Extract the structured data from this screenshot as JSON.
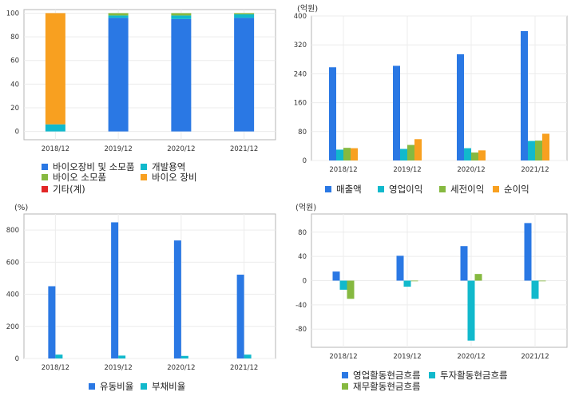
{
  "colors": {
    "blue": "#2a78e4",
    "teal": "#11b9cc",
    "green": "#86b940",
    "orange": "#f8a020",
    "red": "#e22626",
    "grid": "#ececec",
    "frame": "#b5b5b5"
  },
  "chart_data": [
    {
      "type": "bar",
      "stacked": true,
      "unit": "",
      "categories": [
        "2018/12",
        "2019/12",
        "2020/12",
        "2021/12"
      ],
      "ylim": [
        -7,
        103
      ],
      "yticks": [
        0,
        20,
        40,
        60,
        80,
        100
      ],
      "series": [
        {
          "name": "바이오장비 및 소모품",
          "color": "#2a78e4",
          "values": [
            0,
            96,
            95,
            96
          ]
        },
        {
          "name": "개발용역",
          "color": "#11b9cc",
          "values": [
            6,
            2,
            3,
            3
          ]
        },
        {
          "name": "바이오 소모품",
          "color": "#86b940",
          "values": [
            0,
            2,
            2,
            1
          ]
        },
        {
          "name": "바이오 장비",
          "color": "#f8a020",
          "values": [
            94,
            0,
            0,
            0
          ]
        },
        {
          "name": "기타(계)",
          "color": "#e22626",
          "values": [
            0,
            0,
            0,
            0
          ]
        }
      ]
    },
    {
      "type": "bar",
      "unit": "(억원)",
      "categories": [
        "2018/12",
        "2019/12",
        "2020/12",
        "2021/12"
      ],
      "ylim": [
        0,
        400
      ],
      "yticks": [
        0,
        80,
        160,
        240,
        320,
        400
      ],
      "series": [
        {
          "name": "매출액",
          "color": "#2a78e4",
          "values": [
            258,
            262,
            294,
            358
          ]
        },
        {
          "name": "영업이익",
          "color": "#11b9cc",
          "values": [
            30,
            32,
            34,
            54
          ]
        },
        {
          "name": "세전이익",
          "color": "#86b940",
          "values": [
            35,
            43,
            22,
            55
          ]
        },
        {
          "name": "순이익",
          "color": "#f8a020",
          "values": [
            34,
            59,
            28,
            74
          ]
        }
      ]
    },
    {
      "type": "bar",
      "unit": "(%)",
      "categories": [
        "2018/12",
        "2019/12",
        "2020/12",
        "2021/12"
      ],
      "ylim": [
        0,
        900
      ],
      "yticks": [
        0,
        200,
        400,
        600,
        800
      ],
      "series": [
        {
          "name": "유동비율",
          "color": "#2a78e4",
          "values": [
            450,
            848,
            735,
            522
          ]
        },
        {
          "name": "부채비율",
          "color": "#11b9cc",
          "values": [
            24,
            18,
            16,
            24
          ]
        }
      ]
    },
    {
      "type": "bar",
      "unit": "(억원)",
      "categories": [
        "2018/12",
        "2019/12",
        "2020/12",
        "2021/12"
      ],
      "ylim": [
        -110,
        110
      ],
      "yticks": [
        -80,
        -40,
        0,
        40,
        80
      ],
      "series": [
        {
          "name": "영업활동현금흐름",
          "color": "#2a78e4",
          "values": [
            15,
            41,
            57,
            95
          ]
        },
        {
          "name": "투자활동현금흐름",
          "color": "#11b9cc",
          "values": [
            -15,
            -10,
            -99,
            -30
          ]
        },
        {
          "name": "재무활동현금흐름",
          "color": "#86b940",
          "values": [
            -30,
            -1,
            11,
            -1
          ]
        }
      ]
    }
  ]
}
